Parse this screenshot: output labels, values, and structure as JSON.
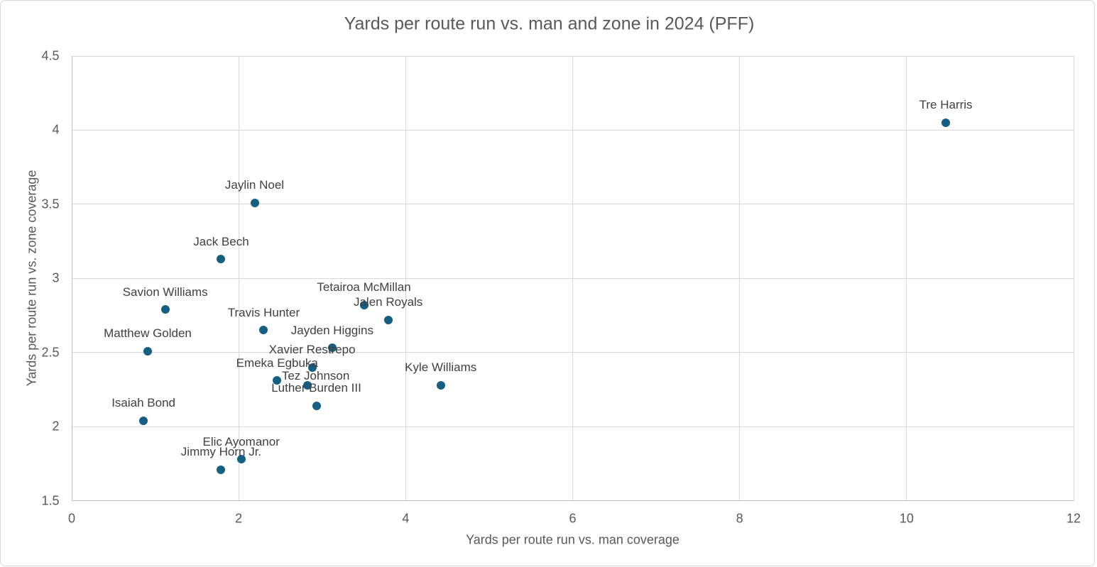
{
  "chart_data": {
    "type": "scatter",
    "title": "Yards per route run vs. man and zone in 2024 (PFF)",
    "xlabel": "Yards per route run vs. man coverage",
    "ylabel": "Yards per route run vs. zone coverage",
    "xlim": [
      0,
      12
    ],
    "ylim": [
      1.5,
      4.5
    ],
    "x_ticks": [
      0,
      2,
      4,
      6,
      8,
      10,
      12
    ],
    "x_tick_labels": [
      "0",
      "2",
      "4",
      "6",
      "8",
      "10",
      "12"
    ],
    "y_ticks": [
      1.5,
      2,
      2.5,
      3,
      3.5,
      4,
      4.5
    ],
    "y_tick_labels": [
      "1.5",
      "2",
      "2.5",
      "3",
      "3.5",
      "4",
      "4.5"
    ],
    "grid": true,
    "legend": false,
    "marker_color": "#156082",
    "title_color": "#595959",
    "tick_color": "#595959",
    "data_label_color": "#404040",
    "gridline_color": "#D9D9D9",
    "axis_line_color": "#BFBFBF",
    "points": [
      {
        "name": "Tre Harris",
        "x": 10.47,
        "y": 4.05
      },
      {
        "name": "Jaylin Noel",
        "x": 2.19,
        "y": 3.51
      },
      {
        "name": "Jack Bech",
        "x": 1.79,
        "y": 3.13
      },
      {
        "name": "Savion Williams",
        "x": 1.12,
        "y": 2.79
      },
      {
        "name": "Tetairoa McMillan",
        "x": 3.5,
        "y": 2.82
      },
      {
        "name": "Jalen Royals",
        "x": 3.79,
        "y": 2.72
      },
      {
        "name": "Travis Hunter",
        "x": 2.3,
        "y": 2.65
      },
      {
        "name": "Jayden Higgins",
        "x": 3.12,
        "y": 2.53
      },
      {
        "name": "Matthew Golden",
        "x": 0.91,
        "y": 2.51
      },
      {
        "name": "Xavier Restrepo",
        "x": 2.88,
        "y": 2.4
      },
      {
        "name": "Emeka Egbuka",
        "x": 2.46,
        "y": 2.31
      },
      {
        "name": "Tez Johnson",
        "x": 2.82,
        "y": 2.28,
        "label_dx": 12,
        "label_dy": -13
      },
      {
        "name": "Kyle Williams",
        "x": 4.42,
        "y": 2.28
      },
      {
        "name": "Luther Burden III",
        "x": 2.93,
        "y": 2.14
      },
      {
        "name": "Isaiah Bond",
        "x": 0.86,
        "y": 2.04
      },
      {
        "name": "Elic Ayomanor",
        "x": 2.03,
        "y": 1.78
      },
      {
        "name": "Jimmy Horn Jr.",
        "x": 1.79,
        "y": 1.71
      }
    ]
  }
}
